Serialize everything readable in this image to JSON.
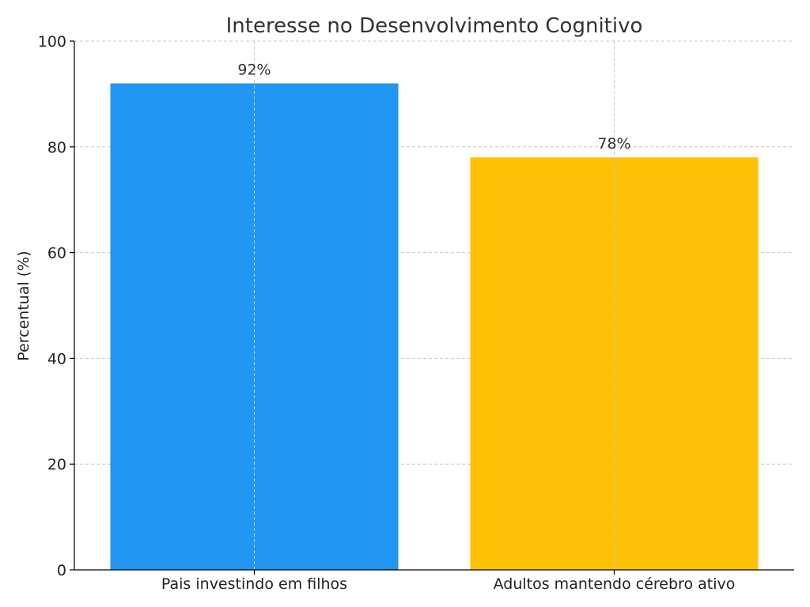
{
  "chart_data": {
    "type": "bar",
    "title": "Interesse no Desenvolvimento Cognitivo",
    "xlabel": "",
    "ylabel": "Percentual (%)",
    "categories": [
      "Pais investindo em filhos",
      "Adultos mantendo cérebro ativo"
    ],
    "values": [
      92,
      78
    ],
    "data_labels": [
      "92%",
      "78%"
    ],
    "colors": [
      "#2196F3",
      "#FFC107"
    ],
    "ylim": [
      0,
      100
    ],
    "yticks": [
      0,
      20,
      40,
      60,
      80,
      100
    ],
    "grid": true,
    "legend": "none"
  }
}
